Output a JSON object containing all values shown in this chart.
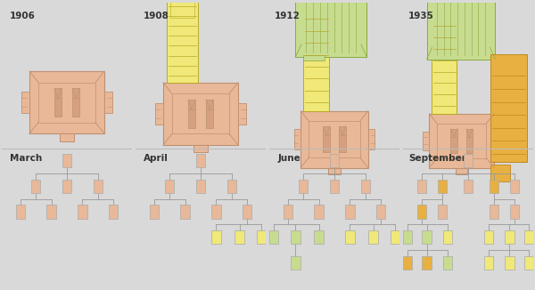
{
  "bg_color": "#d9d9d9",
  "years": [
    "1906",
    "1908",
    "1912",
    "1935"
  ],
  "months": [
    "March",
    "April",
    "June",
    "September"
  ],
  "SALMON": "#e8b898",
  "SALMON_DARK": "#c09070",
  "SALMON_MID": "#d4a080",
  "YELLOW": "#f0e878",
  "YELLOW_DARK": "#b8a828",
  "GREEN": "#c8dc90",
  "GREEN_DARK": "#88aa40",
  "ORANGE": "#e8b040",
  "ORANGE_DARK": "#c08820",
  "node_edge": "#aaaaaa",
  "line_color": "#999999"
}
